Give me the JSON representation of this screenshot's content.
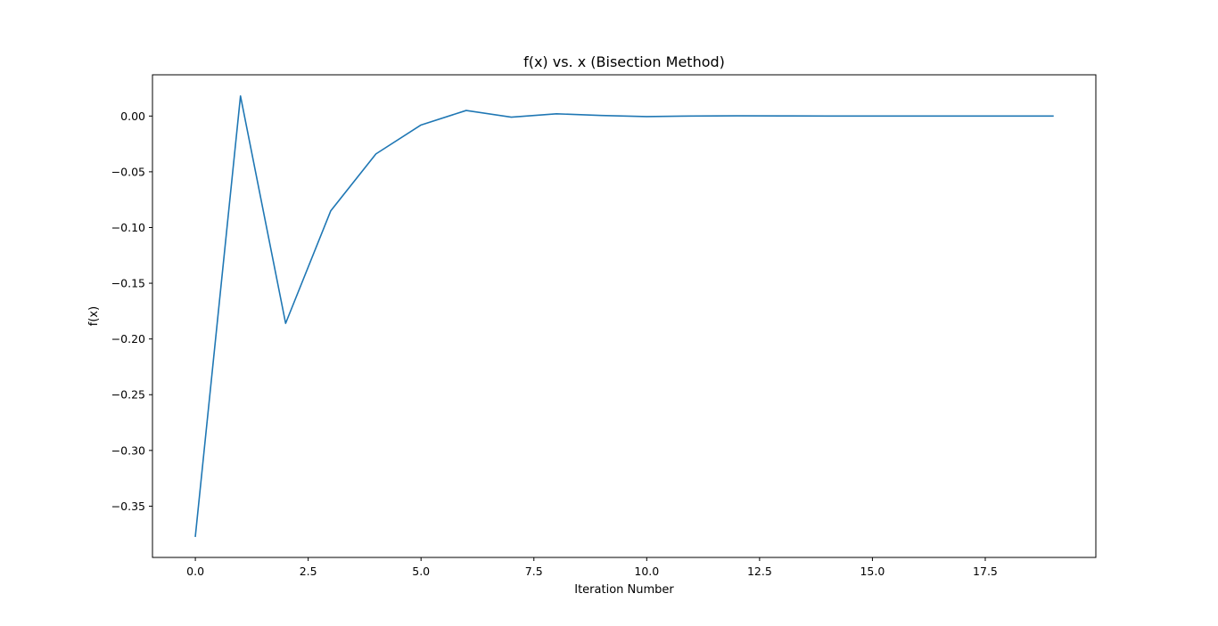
{
  "chart_data": {
    "type": "line",
    "title": "f(x) vs. x (Bisection Method)",
    "xlabel": "Iteration Number",
    "ylabel": "f(x)",
    "xlim": [
      -0.95,
      19.95
    ],
    "ylim": [
      -0.396,
      0.037
    ],
    "xticks": [
      0.0,
      2.5,
      5.0,
      7.5,
      10.0,
      12.5,
      15.0,
      17.5
    ],
    "xtick_labels": [
      "0.0",
      "2.5",
      "5.0",
      "7.5",
      "10.0",
      "12.5",
      "15.0",
      "17.5"
    ],
    "yticks": [
      0.0,
      -0.05,
      -0.1,
      -0.15,
      -0.2,
      -0.25,
      -0.3,
      -0.35
    ],
    "ytick_labels": [
      "0.00",
      "−0.05",
      "−0.10",
      "−0.15",
      "−0.20",
      "−0.25",
      "−0.30",
      "−0.35"
    ],
    "grid": false,
    "series": [
      {
        "color": "#1f77b4",
        "x": [
          0,
          1,
          2,
          3,
          4,
          5,
          6,
          7,
          8,
          9,
          10,
          11,
          12,
          13,
          14,
          15,
          16,
          17,
          18,
          19
        ],
        "y": [
          -0.377,
          0.018,
          -0.186,
          -0.085,
          -0.034,
          -0.008,
          0.005,
          -0.001,
          0.002,
          0.0005,
          -0.0005,
          0.0,
          0.0002,
          0.0001,
          0.0,
          0.0,
          0.0,
          0.0,
          0.0,
          0.0
        ]
      }
    ]
  }
}
